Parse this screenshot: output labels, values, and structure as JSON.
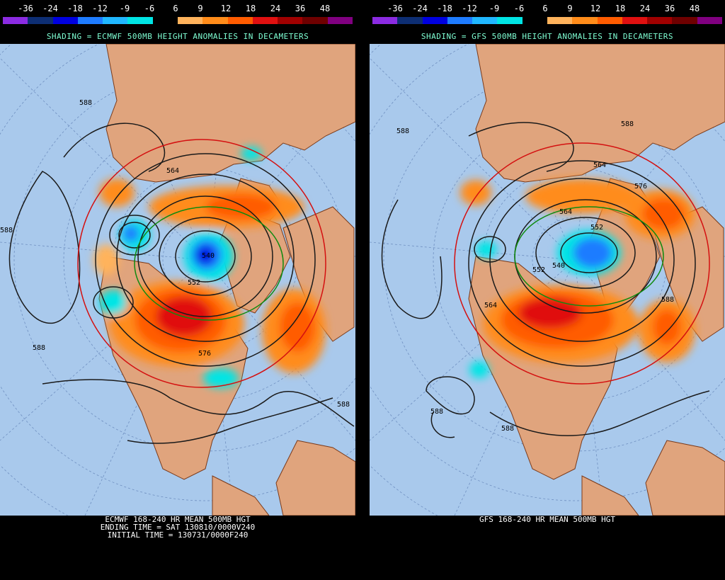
{
  "legend": {
    "labels": [
      "-36",
      "-24",
      "-18",
      "-12",
      "-9",
      "-6",
      "6",
      "9",
      "12",
      "18",
      "24",
      "36",
      "48"
    ],
    "colors": [
      "#8b2be2",
      "#0d2e73",
      "#0000e0",
      "#1e7cff",
      "#20b7ff",
      "#00e5e5",
      "#000000",
      "#ffb35c",
      "#ff8c1a",
      "#ff5c00",
      "#e01010",
      "#a00000",
      "#6e0000",
      "#800080"
    ]
  },
  "panels": [
    {
      "shading_title": "SHADING = ECMWF 500MB HEIGHT ANOMALIES IN DECAMETERS",
      "caption": [
        "ECMWF 168-240 HR MEAN 500MB HGT",
        "ENDING TIME = SAT 130810/0000V240",
        "INITIAL TIME = 130731/0000F240"
      ],
      "contour_labels": [
        "588",
        "588",
        "564",
        "588",
        "588",
        "576",
        "540",
        "552"
      ]
    },
    {
      "shading_title": "SHADING = GFS 500MB HEIGHT ANOMALIES IN DECAMETERS",
      "caption": [
        "GFS 168-240 HR MEAN 500MB HGT"
      ],
      "contour_labels": [
        "588",
        "588",
        "564",
        "576",
        "552",
        "540",
        "564",
        "552",
        "588",
        "588",
        "564",
        "588"
      ]
    }
  ]
}
